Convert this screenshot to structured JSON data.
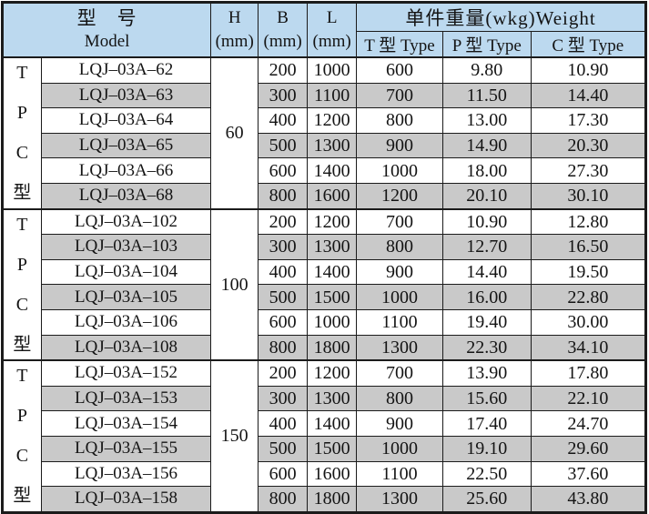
{
  "colors": {
    "header_bg": "#bcd9ef",
    "stripe_bg": "#c9c9c9",
    "border": "#1b1b1b"
  },
  "header": {
    "model_cn": "型　号",
    "model_en": "Model",
    "h": "H",
    "h_unit": "(mm)",
    "b": "B",
    "b_unit": "(mm)",
    "l": "L",
    "l_unit": "(mm)",
    "weight": "单件重量(wkg)Weight",
    "weight_t": "T 型 Type",
    "weight_p": "P 型 Type",
    "weight_c": "C 型 Type"
  },
  "groups": [
    {
      "letters": [
        "T",
        "P",
        "C",
        "型"
      ],
      "h": "60",
      "rows": [
        {
          "model": "LQJ–03A–62",
          "b": "200",
          "l": "1000",
          "t": "600",
          "p": "9.80",
          "c": "10.90"
        },
        {
          "model": "LQJ–03A–63",
          "b": "300",
          "l": "1100",
          "t": "700",
          "p": "11.50",
          "c": "14.40"
        },
        {
          "model": "LQJ–03A–64",
          "b": "400",
          "l": "1200",
          "t": "800",
          "p": "13.00",
          "c": "17.30"
        },
        {
          "model": "LQJ–03A–65",
          "b": "500",
          "l": "1300",
          "t": "900",
          "p": "14.90",
          "c": "20.30"
        },
        {
          "model": "LQJ–03A–66",
          "b": "600",
          "l": "1400",
          "t": "1000",
          "p": "18.00",
          "c": "27.30"
        },
        {
          "model": "LQJ–03A–68",
          "b": "800",
          "l": "1600",
          "t": "1200",
          "p": "20.10",
          "c": "30.10"
        }
      ]
    },
    {
      "letters": [
        "T",
        "P",
        "C",
        "型"
      ],
      "h": "100",
      "rows": [
        {
          "model": "LQJ–03A–102",
          "b": "200",
          "l": "1200",
          "t": "700",
          "p": "10.90",
          "c": "12.80"
        },
        {
          "model": "LQJ–03A–103",
          "b": "300",
          "l": "1300",
          "t": "800",
          "p": "12.70",
          "c": "16.50"
        },
        {
          "model": "LQJ–03A–104",
          "b": "400",
          "l": "1400",
          "t": "900",
          "p": "14.40",
          "c": "19.50"
        },
        {
          "model": "LQJ–03A–105",
          "b": "500",
          "l": "1500",
          "t": "1000",
          "p": "16.00",
          "c": "22.80"
        },
        {
          "model": "LQJ–03A–106",
          "b": "600",
          "l": "1000",
          "t": "1100",
          "p": "19.40",
          "c": "30.00"
        },
        {
          "model": "LQJ–03A–108",
          "b": "800",
          "l": "1800",
          "t": "1300",
          "p": "22.30",
          "c": "34.10"
        }
      ]
    },
    {
      "letters": [
        "T",
        "P",
        "C",
        "型"
      ],
      "h": "150",
      "rows": [
        {
          "model": "LQJ–03A–152",
          "b": "200",
          "l": "1200",
          "t": "700",
          "p": "13.90",
          "c": "17.80"
        },
        {
          "model": "LQJ–03A–153",
          "b": "300",
          "l": "1300",
          "t": "800",
          "p": "15.60",
          "c": "22.10"
        },
        {
          "model": "LQJ–03A–154",
          "b": "400",
          "l": "1400",
          "t": "900",
          "p": "17.40",
          "c": "24.70"
        },
        {
          "model": "LQJ–03A–155",
          "b": "500",
          "l": "1500",
          "t": "1000",
          "p": "19.10",
          "c": "29.60"
        },
        {
          "model": "LQJ–03A–156",
          "b": "600",
          "l": "1600",
          "t": "1100",
          "p": "22.50",
          "c": "37.60"
        },
        {
          "model": "LQJ–03A–158",
          "b": "800",
          "l": "1800",
          "t": "1300",
          "p": "25.60",
          "c": "43.80"
        }
      ]
    }
  ]
}
